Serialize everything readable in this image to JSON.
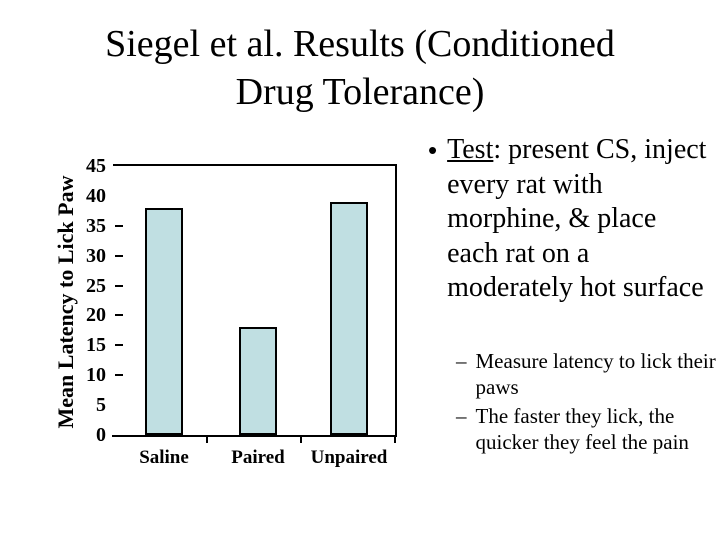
{
  "slide": {
    "title_line1": "Siegel et al. Results (Conditioned",
    "title_line2": "Drug Tolerance)"
  },
  "bullets": {
    "main": {
      "marker": "•",
      "term": "Test",
      "text": ":  present CS, inject every rat with morphine, & place each rat on a moderately hot surface"
    },
    "sub": [
      {
        "marker": "–",
        "text": "Measure latency to lick their paws"
      },
      {
        "marker": "–",
        "text": "The faster they lick, the quicker they feel the pain"
      }
    ]
  },
  "chart_data": {
    "type": "bar",
    "title": "",
    "categories": [
      "Saline",
      "Paired",
      "Unpaired"
    ],
    "values": [
      38,
      18,
      39
    ],
    "xlabel": "",
    "ylabel": "Mean Latency to Lick Paw",
    "ylim": [
      0,
      45
    ],
    "ytick_interval": 5,
    "ytick_labels": [
      "45",
      "40",
      "35",
      "30",
      "25",
      "20",
      "15",
      "10",
      "5",
      "0"
    ],
    "ytick_mark_values": [
      35,
      30,
      25,
      20,
      15,
      10
    ],
    "grid": false,
    "legend": false,
    "bar_fill": "#c0dfe2",
    "bar_border": "#000000",
    "axis_color": "#000000",
    "plot_border": "top-right-bottom"
  },
  "colors": {
    "background": "#ffffff",
    "text": "#000000"
  }
}
